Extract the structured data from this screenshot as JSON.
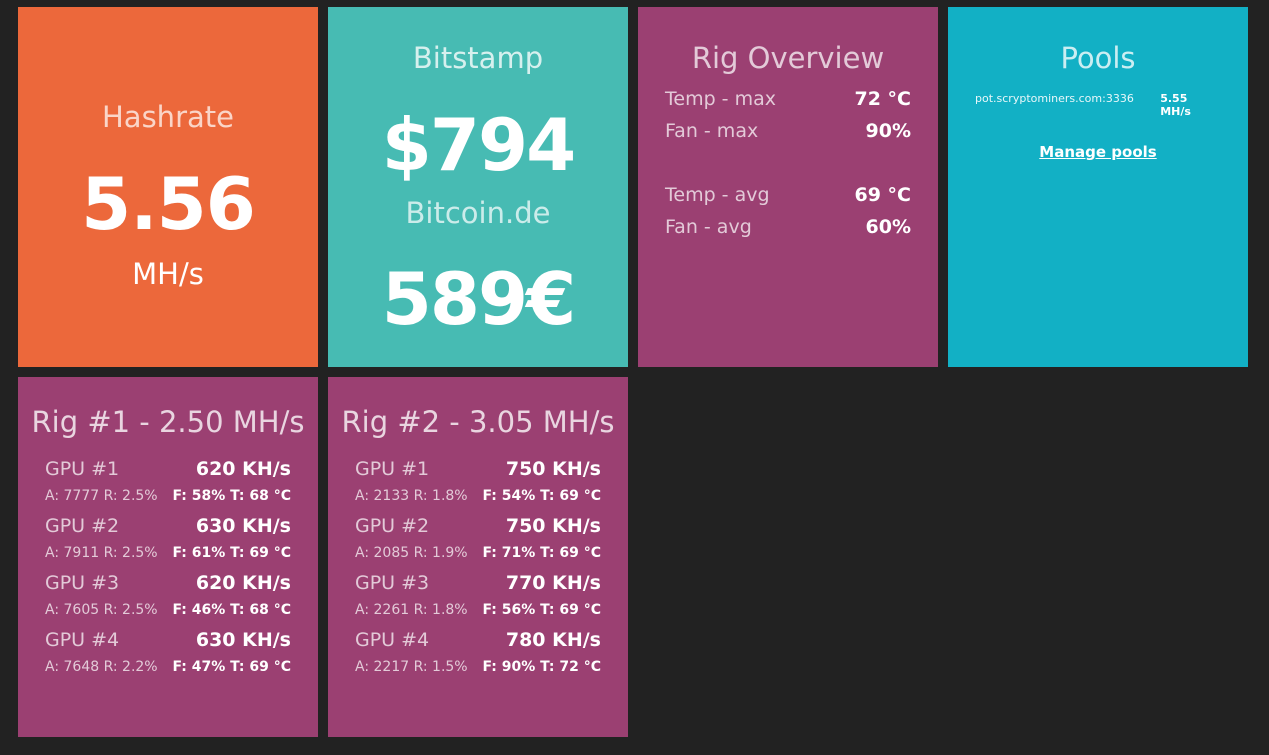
{
  "hashrate": {
    "title": "Hashrate",
    "value": "5.56",
    "unit": "MH/s"
  },
  "prices": {
    "bitstamp_title": "Bitstamp",
    "bitstamp_price": "$794",
    "bitcoinde_title": "Bitcoin.de",
    "bitcoinde_price": "589€"
  },
  "overview": {
    "title": "Rig Overview",
    "stats": [
      {
        "label": "Temp - max",
        "value": "72 °C"
      },
      {
        "label": "Fan - max",
        "value": "90%"
      },
      {
        "label": "Temp - avg",
        "value": "69 °C"
      },
      {
        "label": "Fan - avg",
        "value": "60%"
      }
    ]
  },
  "pools": {
    "title": "Pools",
    "items": [
      {
        "url": "pot.scryptominers.com:3336",
        "rate": "5.55 MH/s"
      }
    ],
    "manage_label": "Manage pools"
  },
  "rigs": [
    {
      "title": "Rig #1 - 2.50 MH/s",
      "gpus": [
        {
          "name": "GPU #1",
          "rate": "620 KH/s",
          "ar": "A: 7777 R: 2.5%",
          "ft": "F: 58% T: 68 °C"
        },
        {
          "name": "GPU #2",
          "rate": "630 KH/s",
          "ar": "A: 7911 R: 2.5%",
          "ft": "F: 61% T: 69 °C"
        },
        {
          "name": "GPU #3",
          "rate": "620 KH/s",
          "ar": "A: 7605 R: 2.5%",
          "ft": "F: 46% T: 68 °C"
        },
        {
          "name": "GPU #4",
          "rate": "630 KH/s",
          "ar": "A: 7648 R: 2.2%",
          "ft": "F: 47% T: 69 °C"
        }
      ]
    },
    {
      "title": "Rig #2 - 3.05 MH/s",
      "gpus": [
        {
          "name": "GPU #1",
          "rate": "750 KH/s",
          "ar": "A: 2133 R: 1.8%",
          "ft": "F: 54% T: 69 °C"
        },
        {
          "name": "GPU #2",
          "rate": "750 KH/s",
          "ar": "A: 2085 R: 1.9%",
          "ft": "F: 71% T: 69 °C"
        },
        {
          "name": "GPU #3",
          "rate": "770 KH/s",
          "ar": "A: 2261 R: 1.8%",
          "ft": "F: 56% T: 69 °C"
        },
        {
          "name": "GPU #4",
          "rate": "780 KH/s",
          "ar": "A: 2217 R: 1.5%",
          "ft": "F: 90% T: 72 °C"
        }
      ]
    }
  ],
  "colors": {
    "background": "#222222",
    "hashrate_tile": "#ec683b",
    "price_tile": "#47bbb3",
    "rig_tile": "#9b4072",
    "pools_tile": "#12b0c5"
  }
}
